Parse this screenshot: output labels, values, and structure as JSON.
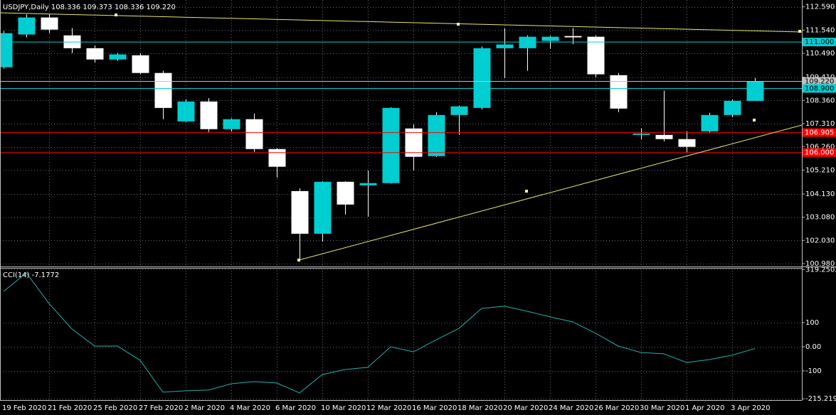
{
  "chart_data": [
    {
      "type": "candlestick",
      "title": "USDJPY,Daily  108.336 109.373 108.336 109.220",
      "categories": [
        "19 Feb 2020",
        null,
        "21 Feb 2020",
        null,
        "25 Feb 2020",
        null,
        "27 Feb 2020",
        null,
        "2 Mar 2020",
        null,
        "4 Mar 2020",
        null,
        "6 Mar 2020",
        null,
        "10 Mar 2020",
        null,
        "12 Mar 2020",
        null,
        "16 Mar 2020",
        null,
        "18 Mar 2020",
        null,
        "20 Mar 2020",
        null,
        "24 Mar 2020",
        null,
        "26 Mar 2020",
        null,
        "30 Mar 2020",
        null,
        "1 Apr 2020",
        null,
        "3 Apr 2020",
        null
      ],
      "open": [
        109.86,
        111.34,
        112.11,
        111.3,
        110.72,
        110.21,
        110.4,
        109.6,
        107.41,
        108.31,
        107.06,
        107.51,
        106.16,
        104.26,
        102.33,
        104.68,
        104.52,
        104.62,
        107.09,
        105.84,
        107.7,
        108.02,
        110.72,
        110.72,
        111.05,
        111.27,
        111.24,
        109.5,
        106.8,
        106.8,
        106.61,
        106.96,
        107.7,
        108.336
      ],
      "high": [
        111.5,
        112.25,
        112.27,
        111.63,
        110.85,
        110.5,
        110.5,
        109.7,
        108.41,
        108.47,
        107.55,
        107.77,
        106.2,
        104.39,
        104.7,
        104.7,
        105.2,
        108.05,
        107.28,
        107.83,
        108.12,
        110.8,
        111.63,
        111.3,
        111.28,
        111.63,
        111.3,
        109.6,
        107.1,
        108.8,
        106.96,
        107.8,
        108.4,
        109.373
      ],
      "low": [
        109.8,
        111.2,
        111.4,
        110.5,
        110.08,
        110.15,
        109.55,
        107.51,
        107.38,
        106.93,
        106.95,
        106.03,
        104.87,
        101.18,
        101.98,
        103.2,
        103.1,
        104.6,
        105.2,
        105.8,
        106.8,
        107.95,
        109.37,
        109.7,
        110.7,
        110.9,
        109.4,
        107.83,
        106.6,
        106.5,
        106.0,
        106.9,
        107.6,
        108.336
      ],
      "close": [
        111.4,
        112.11,
        111.56,
        110.72,
        110.21,
        110.44,
        109.6,
        108.02,
        108.31,
        107.06,
        107.51,
        106.16,
        105.36,
        102.33,
        104.68,
        103.65,
        104.62,
        108.02,
        105.81,
        107.7,
        108.09,
        110.72,
        110.89,
        111.24,
        111.24,
        111.21,
        109.54,
        107.99,
        106.86,
        106.61,
        106.26,
        107.7,
        108.34,
        109.22
      ],
      "up_color": "#00ced1",
      "down_color": "#ffffff",
      "wick_color": "#ffffff",
      "ylim": [
        100.85,
        112.9
      ],
      "yticks": [
        {
          "value": 112.59,
          "label": "112.590"
        },
        {
          "value": 111.54,
          "label": "111.540"
        },
        {
          "value": 110.49,
          "label": "110.490"
        },
        {
          "value": 109.41,
          "label": "109.410"
        },
        {
          "value": 108.36,
          "label": "108.360"
        },
        {
          "value": 107.31,
          "label": "107.310"
        },
        {
          "value": 106.26,
          "label": "106.260"
        },
        {
          "value": 105.21,
          "label": "105.210"
        },
        {
          "value": 104.13,
          "label": "104.130"
        },
        {
          "value": 103.08,
          "label": "103.080"
        },
        {
          "value": 102.03,
          "label": "102.030"
        },
        {
          "value": 100.98,
          "label": "100.980"
        }
      ],
      "levels": [
        {
          "value": 111.0,
          "label": "111.000",
          "color": "#00ced1",
          "label_color": "#000000"
        },
        {
          "value": 109.22,
          "label": "109.220",
          "color": "#c0c0c0",
          "label_color": "#000000"
        },
        {
          "value": 108.9,
          "label": "108.900",
          "color": "#00ced1",
          "label_color": "#000000"
        },
        {
          "value": 106.905,
          "label": "106.905",
          "color": "#ff0000",
          "label_color": "#ffffff"
        },
        {
          "value": 106.0,
          "label": "106.000",
          "color": "#ff0000",
          "label_color": "#ffffff"
        }
      ],
      "grid": true
    },
    {
      "type": "line",
      "title": "CCI(14) -7.1772",
      "values": [
        229,
        306,
        179,
        74,
        3,
        3,
        -56,
        -188,
        -182,
        -179,
        -153,
        -144,
        -150,
        -191,
        -115,
        -94,
        -85,
        0,
        -21,
        29,
        76,
        159,
        168,
        147,
        124,
        103,
        56,
        3,
        -24,
        -29,
        -65,
        -53,
        -35,
        -7.1772
      ],
      "color": "#20b2aa",
      "ylim": [
        -220.6,
        326.5
      ],
      "yticks": [
        319.2502,
        100,
        {
          "value": 0,
          "label": "0.00"
        },
        -100,
        -215.2198
      ],
      "grid": true
    }
  ]
}
